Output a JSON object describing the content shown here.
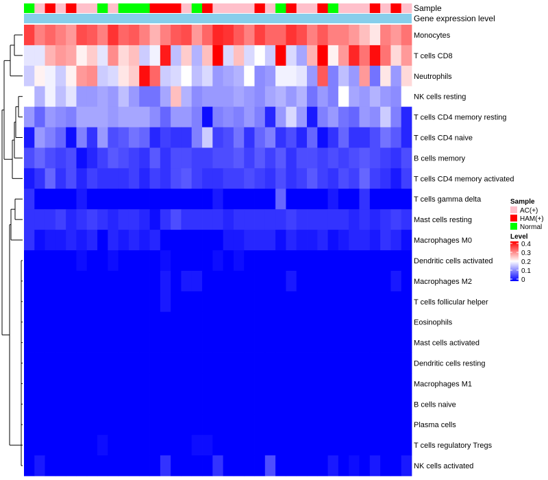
{
  "chart_data": {
    "type": "heatmap",
    "annotation_rows": [
      {
        "label": "Sample"
      },
      {
        "label": "Gene expression level"
      }
    ],
    "columns_sample": [
      "Normal",
      "AC(+)",
      "HAM(+)",
      "AC(+)",
      "HAM(+)",
      "AC(+)",
      "AC(+)",
      "Normal",
      "AC(+)",
      "Normal",
      "Normal",
      "Normal",
      "HAM(+)",
      "HAM(+)",
      "HAM(+)",
      "AC(+)",
      "Normal",
      "HAM(+)",
      "AC(+)",
      "AC(+)",
      "AC(+)",
      "AC(+)",
      "HAM(+)",
      "AC(+)",
      "Normal",
      "HAM(+)",
      "AC(+)",
      "AC(+)",
      "HAM(+)",
      "Normal",
      "AC(+)",
      "AC(+)",
      "AC(+)",
      "HAM(+)",
      "AC(+)",
      "HAM(+)",
      "AC(+)"
    ],
    "gene_expression_color": "#87ceeb",
    "rows": [
      "Monocytes",
      "T cells CD8",
      "Neutrophils",
      "NK cells resting",
      "T cells CD4 memory resting",
      "T cells CD4 naive",
      "B cells memory",
      "T cells CD4 memory activated",
      "T cells gamma delta",
      "Mast cells resting",
      "Macrophages M0",
      "Dendritic cells activated",
      "Macrophages M2",
      "T cells follicular helper",
      "Eosinophils",
      "Mast cells activated",
      "Dendritic cells resting",
      "Macrophages M1",
      "B cells naive",
      "Plasma cells",
      "T cells regulatory  Tregs",
      "NK cells activated"
    ],
    "values": [
      [
        0.35,
        0.3,
        0.32,
        0.3,
        0.28,
        0.34,
        0.33,
        0.3,
        0.36,
        0.32,
        0.33,
        0.3,
        0.26,
        0.3,
        0.33,
        0.34,
        0.28,
        0.32,
        0.37,
        0.36,
        0.33,
        0.3,
        0.35,
        0.32,
        0.32,
        0.36,
        0.34,
        0.3,
        0.33,
        0.3,
        0.3,
        0.28,
        0.25,
        0.22,
        0.3,
        0.28,
        0.31
      ],
      [
        0.18,
        0.18,
        0.26,
        0.28,
        0.27,
        0.21,
        0.24,
        0.18,
        0.29,
        0.23,
        0.25,
        0.16,
        0.19,
        0.38,
        0.15,
        0.24,
        0.14,
        0.25,
        0.4,
        0.17,
        0.25,
        0.17,
        0.2,
        0.16,
        0.4,
        0.17,
        0.13,
        0.26,
        0.4,
        0.21,
        0.28,
        0.37,
        0.31,
        0.39,
        0.31,
        0.23,
        0.28
      ],
      [
        0.16,
        0.21,
        0.19,
        0.16,
        0.21,
        0.28,
        0.29,
        0.16,
        0.17,
        0.22,
        0.24,
        0.39,
        0.32,
        0.16,
        0.17,
        0.2,
        0.15,
        0.17,
        0.12,
        0.13,
        0.14,
        0.2,
        0.11,
        0.12,
        0.19,
        0.19,
        0.18,
        0.12,
        0.33,
        0.1,
        0.15,
        0.12,
        0.28,
        0.09,
        0.22,
        0.12,
        0.23
      ],
      [
        0.2,
        0.14,
        0.19,
        0.15,
        0.18,
        0.12,
        0.12,
        0.13,
        0.12,
        0.15,
        0.12,
        0.09,
        0.09,
        0.13,
        0.25,
        0.14,
        0.11,
        0.12,
        0.12,
        0.12,
        0.13,
        0.12,
        0.11,
        0.13,
        0.14,
        0.12,
        0.14,
        0.09,
        0.12,
        0.1,
        0.2,
        0.13,
        0.12,
        0.14,
        0.12,
        0.11,
        0.2
      ],
      [
        0.12,
        0.08,
        0.12,
        0.11,
        0.1,
        0.13,
        0.13,
        0.13,
        0.12,
        0.13,
        0.13,
        0.13,
        0.11,
        0.08,
        0.12,
        0.12,
        0.1,
        0.01,
        0.1,
        0.11,
        0.1,
        0.12,
        0.1,
        0.03,
        0.12,
        0.17,
        0.12,
        0.02,
        0.1,
        0.12,
        0.09,
        0.08,
        0.12,
        0.11,
        0.16,
        0.1,
        0.03
      ],
      [
        0.02,
        0.12,
        0.1,
        0.08,
        0.01,
        0.1,
        0.04,
        0.12,
        0.06,
        0.07,
        0.09,
        0.08,
        0.03,
        0.05,
        0.04,
        0.04,
        0.1,
        0.16,
        0.05,
        0.06,
        0.09,
        0.04,
        0.08,
        0.1,
        0.04,
        0.06,
        0.03,
        0.08,
        0.01,
        0.04,
        0.08,
        0.04,
        0.04,
        0.06,
        0.09,
        0.07,
        0.03
      ],
      [
        0.06,
        0.08,
        0.06,
        0.05,
        0.06,
        0.01,
        0.03,
        0.05,
        0.07,
        0.06,
        0.05,
        0.04,
        0.07,
        0.04,
        0.06,
        0.06,
        0.05,
        0.05,
        0.06,
        0.06,
        0.07,
        0.05,
        0.07,
        0.05,
        0.07,
        0.04,
        0.06,
        0.06,
        0.05,
        0.06,
        0.05,
        0.06,
        0.07,
        0.06,
        0.05,
        0.04,
        0.06
      ],
      [
        0.02,
        0.04,
        0.08,
        0.04,
        0.06,
        0.03,
        0.05,
        0.04,
        0.04,
        0.04,
        0.05,
        0.03,
        0.05,
        0.04,
        0.06,
        0.07,
        0.05,
        0.04,
        0.04,
        0.05,
        0.05,
        0.06,
        0.05,
        0.04,
        0.06,
        0.04,
        0.05,
        0.07,
        0.05,
        0.04,
        0.06,
        0.05,
        0.08,
        0.05,
        0.04,
        0.02,
        0.05
      ],
      [
        0.04,
        0.0,
        0.0,
        0.0,
        0.0,
        0.02,
        0.0,
        0.0,
        0.0,
        0.0,
        0.0,
        0.0,
        0.0,
        0.0,
        0.0,
        0.0,
        0.0,
        0.0,
        0.02,
        0.0,
        0.0,
        0.0,
        0.0,
        0.0,
        0.08,
        0.0,
        0.0,
        0.0,
        0.0,
        0.02,
        0.0,
        0.0,
        0.04,
        0.0,
        0.0,
        0.0,
        0.0
      ],
      [
        0.04,
        0.04,
        0.04,
        0.05,
        0.03,
        0.04,
        0.05,
        0.04,
        0.03,
        0.04,
        0.04,
        0.03,
        0.01,
        0.04,
        0.06,
        0.04,
        0.04,
        0.04,
        0.04,
        0.03,
        0.04,
        0.04,
        0.04,
        0.04,
        0.04,
        0.05,
        0.04,
        0.04,
        0.04,
        0.04,
        0.04,
        0.03,
        0.04,
        0.03,
        0.04,
        0.05,
        0.04
      ],
      [
        0.04,
        0.01,
        0.02,
        0.02,
        0.03,
        0.02,
        0.03,
        0.0,
        0.03,
        0.02,
        0.03,
        0.02,
        0.03,
        0.0,
        0.0,
        0.0,
        0.0,
        0.0,
        0.0,
        0.02,
        0.02,
        0.03,
        0.03,
        0.03,
        0.01,
        0.03,
        0.02,
        0.02,
        0.03,
        0.01,
        0.02,
        0.03,
        0.03,
        0.02,
        0.04,
        0.03,
        0.01
      ],
      [
        0.0,
        0.0,
        0.0,
        0.0,
        0.0,
        0.01,
        0.0,
        0.0,
        0.01,
        0.0,
        0.0,
        0.0,
        0.0,
        0.01,
        0.0,
        0.0,
        0.0,
        0.0,
        0.01,
        0.0,
        0.01,
        0.0,
        0.0,
        0.0,
        0.0,
        0.0,
        0.0,
        0.0,
        0.0,
        0.0,
        0.0,
        0.0,
        0.0,
        0.0,
        0.0,
        0.0,
        0.0
      ],
      [
        0.0,
        0.0,
        0.0,
        0.0,
        0.0,
        0.0,
        0.0,
        0.0,
        0.0,
        0.0,
        0.0,
        0.0,
        0.0,
        0.02,
        0.0,
        0.02,
        0.02,
        0.0,
        0.0,
        0.0,
        0.0,
        0.0,
        0.0,
        0.0,
        0.0,
        0.02,
        0.0,
        0.0,
        0.0,
        0.0,
        0.0,
        0.0,
        0.0,
        0.0,
        0.0,
        0.02,
        0.0
      ],
      [
        0.0,
        0.0,
        0.0,
        0.0,
        0.0,
        0.0,
        0.0,
        0.0,
        0.0,
        0.0,
        0.0,
        0.0,
        0.0,
        0.02,
        0.0,
        0.0,
        0.0,
        0.0,
        0.0,
        0.0,
        0.0,
        0.0,
        0.0,
        0.0,
        0.0,
        0.0,
        0.0,
        0.0,
        0.0,
        0.0,
        0.0,
        0.0,
        0.0,
        0.0,
        0.0,
        0.0,
        0.0
      ],
      [
        0.0,
        0.0,
        0.0,
        0.0,
        0.0,
        0.0,
        0.0,
        0.0,
        0.0,
        0.0,
        0.0,
        0.0,
        0.0,
        0.0,
        0.0,
        0.0,
        0.0,
        0.0,
        0.0,
        0.0,
        0.0,
        0.0,
        0.0,
        0.0,
        0.0,
        0.0,
        0.0,
        0.0,
        0.0,
        0.0,
        0.0,
        0.0,
        0.0,
        0.0,
        0.0,
        0.0,
        0.0
      ],
      [
        0.0,
        0.0,
        0.0,
        0.0,
        0.0,
        0.0,
        0.0,
        0.0,
        0.0,
        0.0,
        0.0,
        0.0,
        0.0,
        0.0,
        0.0,
        0.0,
        0.0,
        0.0,
        0.0,
        0.0,
        0.0,
        0.0,
        0.0,
        0.0,
        0.0,
        0.0,
        0.0,
        0.0,
        0.0,
        0.0,
        0.0,
        0.0,
        0.0,
        0.0,
        0.0,
        0.0,
        0.0
      ],
      [
        0.0,
        0.0,
        0.0,
        0.0,
        0.0,
        0.0,
        0.0,
        0.0,
        0.0,
        0.0,
        0.0,
        0.0,
        0.0,
        0.0,
        0.0,
        0.0,
        0.0,
        0.0,
        0.0,
        0.0,
        0.0,
        0.0,
        0.0,
        0.0,
        0.0,
        0.0,
        0.0,
        0.0,
        0.0,
        0.0,
        0.0,
        0.0,
        0.0,
        0.0,
        0.0,
        0.0,
        0.0
      ],
      [
        0.0,
        0.0,
        0.0,
        0.0,
        0.0,
        0.0,
        0.0,
        0.0,
        0.0,
        0.0,
        0.0,
        0.0,
        0.0,
        0.0,
        0.0,
        0.0,
        0.0,
        0.0,
        0.0,
        0.0,
        0.0,
        0.0,
        0.0,
        0.0,
        0.0,
        0.0,
        0.0,
        0.0,
        0.0,
        0.0,
        0.0,
        0.0,
        0.0,
        0.0,
        0.0,
        0.0,
        0.0
      ],
      [
        0.0,
        0.0,
        0.0,
        0.0,
        0.0,
        0.0,
        0.0,
        0.0,
        0.0,
        0.0,
        0.0,
        0.0,
        0.0,
        0.0,
        0.0,
        0.0,
        0.0,
        0.0,
        0.0,
        0.0,
        0.0,
        0.0,
        0.0,
        0.0,
        0.0,
        0.0,
        0.0,
        0.0,
        0.0,
        0.0,
        0.0,
        0.0,
        0.0,
        0.0,
        0.0,
        0.0,
        0.0
      ],
      [
        0.0,
        0.0,
        0.0,
        0.0,
        0.0,
        0.0,
        0.0,
        0.0,
        0.0,
        0.0,
        0.0,
        0.0,
        0.0,
        0.0,
        0.0,
        0.0,
        0.0,
        0.0,
        0.0,
        0.0,
        0.0,
        0.0,
        0.0,
        0.0,
        0.0,
        0.0,
        0.0,
        0.0,
        0.0,
        0.0,
        0.0,
        0.0,
        0.0,
        0.0,
        0.0,
        0.0,
        0.0
      ],
      [
        0.0,
        0.0,
        0.0,
        0.0,
        0.0,
        0.0,
        0.0,
        0.01,
        0.0,
        0.0,
        0.0,
        0.0,
        0.0,
        0.0,
        0.0,
        0.0,
        0.01,
        0.01,
        0.0,
        0.0,
        0.0,
        0.0,
        0.0,
        0.0,
        0.0,
        0.0,
        0.0,
        0.0,
        0.0,
        0.0,
        0.0,
        0.0,
        0.0,
        0.0,
        0.0,
        0.0,
        0.0
      ],
      [
        0.0,
        0.02,
        0.0,
        0.0,
        0.0,
        0.0,
        0.0,
        0.0,
        0.0,
        0.0,
        0.0,
        0.0,
        0.0,
        0.04,
        0.0,
        0.0,
        0.0,
        0.0,
        0.04,
        0.0,
        0.0,
        0.0,
        0.0,
        0.06,
        0.0,
        0.0,
        0.0,
        0.0,
        0.0,
        0.02,
        0.0,
        0.01,
        0.0,
        0.02,
        0.0,
        0.0,
        0.02
      ]
    ],
    "legend": {
      "sample_title": "Sample",
      "sample_groups": [
        {
          "label": "AC(+)",
          "color": "#ffc0cb"
        },
        {
          "label": "HAM(+)",
          "color": "#ff0000"
        },
        {
          "label": "Normal",
          "color": "#00ff00"
        }
      ],
      "level_title": "Level",
      "level_ticks": [
        "0.4",
        "0.3",
        "0.2",
        "0.1",
        "0"
      ],
      "level_range": [
        0,
        0.4
      ],
      "color_low": "#0000ff",
      "color_mid": "#ffffff",
      "color_high": "#ff0000"
    }
  }
}
